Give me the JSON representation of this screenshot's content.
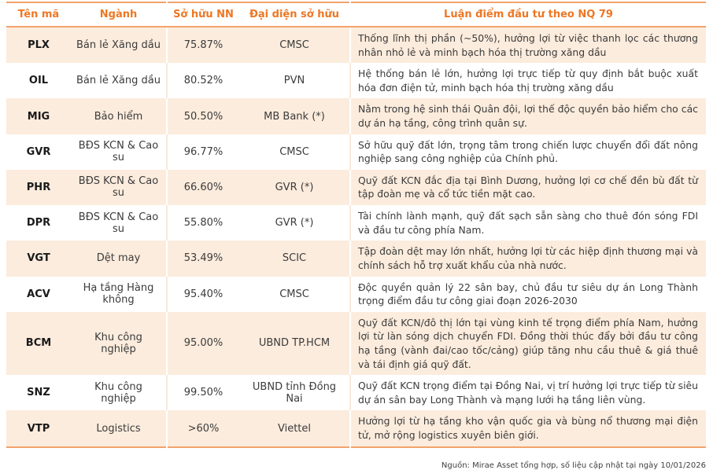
{
  "table": {
    "headers": [
      "Tên mã",
      "Ngành",
      "Sở hữu NN",
      "Đại diện sở hữu",
      "Luận điểm đầu tư theo NQ 79"
    ],
    "rows": [
      {
        "ticker": "PLX",
        "industry": "Bán lẻ Xăng dầu",
        "state_ownership": "75.87%",
        "representative": "CMSC",
        "thesis": "Thống lĩnh thị phần (~50%), hưởng lợi từ việc thanh lọc các thương nhân nhỏ lẻ và minh bạch hóa thị trường xăng dầu"
      },
      {
        "ticker": "OIL",
        "industry": "Bán lẻ Xăng dầu",
        "state_ownership": "80.52%",
        "representative": "PVN",
        "thesis": "Hệ thống bán lẻ lớn, hưởng lợi trực tiếp từ quy định bắt buộc xuất hóa đơn điện tử, minh bạch hóa thị trường xăng dầu"
      },
      {
        "ticker": "MIG",
        "industry": "Bảo hiểm",
        "state_ownership": "50.50%",
        "representative": "MB Bank (*)",
        "thesis": "Nằm trong hệ sinh thái Quân đội, lợi thế độc quyền bảo hiểm cho các dự án hạ tầng, công trình quân sự."
      },
      {
        "ticker": "GVR",
        "industry": "BĐS KCN & Cao su",
        "state_ownership": "96.77%",
        "representative": "CMSC",
        "thesis": "Sở hữu quỹ đất lớn, trọng tâm trong chiến lược chuyển đổi đất nông nghiệp sang công nghiệp của Chính phủ."
      },
      {
        "ticker": "PHR",
        "industry": "BĐS KCN & Cao su",
        "state_ownership": "66.60%",
        "representative": "GVR (*)",
        "thesis": "Quỹ đất KCN đắc địa tại Bình Dương, hưởng lợi cơ chế đền bù đất từ tập đoàn mẹ và cổ tức tiền mặt cao."
      },
      {
        "ticker": "DPR",
        "industry": "BĐS KCN & Cao su",
        "state_ownership": "55.80%",
        "representative": "GVR (*)",
        "thesis": "Tài chính lành mạnh, quỹ đất sạch sẵn sàng cho thuê đón sóng FDI và đầu tư công phía Nam."
      },
      {
        "ticker": "VGT",
        "industry": "Dệt may",
        "state_ownership": "53.49%",
        "representative": "SCIC",
        "thesis": "Tập đoàn dệt may lớn nhất, hưởng lợi từ các hiệp định thương mại và chính sách hỗ trợ xuất khẩu của nhà nước."
      },
      {
        "ticker": "ACV",
        "industry": "Hạ tầng Hàng không",
        "state_ownership": "95.40%",
        "representative": "CMSC",
        "thesis": "Độc quyền quản lý 22 sân bay, chủ đầu tư siêu dự án Long Thành trọng điểm đầu tư công giai đoạn 2026-2030"
      },
      {
        "ticker": "BCM",
        "industry": "Khu công nghiệp",
        "state_ownership": "95.00%",
        "representative": "UBND TP.HCM",
        "thesis": "Quỹ đất KCN/đô thị lớn tại vùng kinh tế trọng điểm phía Nam, hưởng lợi từ làn sóng dịch chuyển FDI. Đồng thời thúc đẩy bởi đầu tư công hạ tầng (vành đai/cao tốc/cảng) giúp tăng nhu cầu thuê & giá thuê và tái định giá quỹ đất."
      },
      {
        "ticker": "SNZ",
        "industry": "Khu công nghiệp",
        "state_ownership": "99.50%",
        "representative": "UBND tỉnh Đồng Nai",
        "thesis": "Quỹ đất KCN trọng điểm tại Đồng Nai, vị trí hưởng lợi trực tiếp từ siêu dự án sân bay Long Thành và mạng lưới hạ tầng liên vùng."
      },
      {
        "ticker": "VTP",
        "industry": "Logistics",
        "state_ownership": ">60%",
        "representative": "Viettel",
        "thesis": "Hưởng lợi từ hạ tầng kho vận quốc gia và bùng nổ thương mại điện tử, mở rộng logistics xuyên biên giới."
      }
    ]
  },
  "footer": {
    "source_note": "Nguồn: Mirae Asset tổng hợp, số liệu cập nhật tại ngày 10/01/2026"
  },
  "colors": {
    "accent_orange": "#ED7723",
    "border_orange": "#F2A36B",
    "row_stripe_peach": "#FCECDD",
    "body_text": "#3B3B3B"
  }
}
